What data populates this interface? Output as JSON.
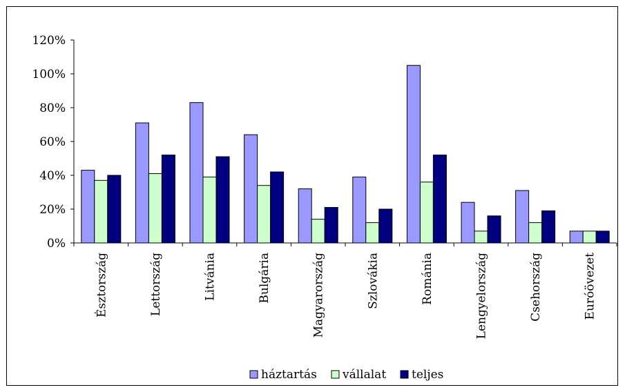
{
  "chart_data": {
    "type": "bar",
    "title": "",
    "xlabel": "",
    "ylabel": "",
    "ylim": [
      0,
      120
    ],
    "yticks": [
      "0%",
      "20%",
      "40%",
      "60%",
      "80%",
      "100%",
      "120%"
    ],
    "ytick_values": [
      0,
      20,
      40,
      60,
      80,
      100,
      120
    ],
    "categories": [
      "Észtország",
      "Lettország",
      "Litvánia",
      "Bulgária",
      "Magyarország",
      "Szlovákia",
      "Románia",
      "Lengyelország",
      "Csehország",
      "Euróövezet"
    ],
    "series": [
      {
        "name": "háztartás",
        "color": "#9999ff",
        "values": [
          43,
          71,
          83,
          64,
          32,
          39,
          105,
          24,
          31,
          7
        ]
      },
      {
        "name": "vállalat",
        "color": "#ccffcc",
        "values": [
          37,
          41,
          39,
          34,
          14,
          12,
          36,
          7,
          12,
          7
        ]
      },
      {
        "name": "teljes",
        "color": "#000080",
        "values": [
          40,
          52,
          51,
          42,
          21,
          20,
          52,
          16,
          19,
          7
        ]
      }
    ],
    "legend_position": "bottom",
    "grid": false
  }
}
